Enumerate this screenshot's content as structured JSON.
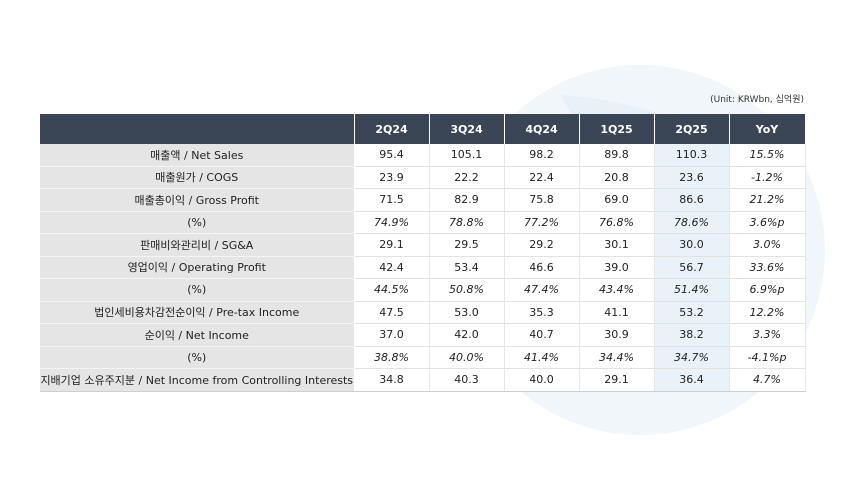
{
  "unit_note": "(Unit: KRWbn, 십억원)",
  "columns": [
    "",
    "2Q24",
    "3Q24",
    "4Q24",
    "1Q25",
    "2Q25",
    "YoY"
  ],
  "rows": [
    {
      "label": "매출액 / Net Sales",
      "values": [
        "95.4",
        "105.1",
        "98.2",
        "89.8",
        "110.3",
        "15.5%"
      ],
      "pct": false
    },
    {
      "label": "매출원가 / COGS",
      "values": [
        "23.9",
        "22.2",
        "22.4",
        "20.8",
        "23.6",
        "-1.2%"
      ],
      "pct": false
    },
    {
      "label": "매출총이익 / Gross Profit",
      "values": [
        "71.5",
        "82.9",
        "75.8",
        "69.0",
        "86.6",
        "21.2%"
      ],
      "pct": false
    },
    {
      "label": "(%)",
      "values": [
        "74.9%",
        "78.8%",
        "77.2%",
        "76.8%",
        "78.6%",
        "3.6%p"
      ],
      "pct": true
    },
    {
      "label": "판매비와관리비 / SG&A",
      "values": [
        "29.1",
        "29.5",
        "29.2",
        "30.1",
        "30.0",
        "3.0%"
      ],
      "pct": false
    },
    {
      "label": "영업이익 / Operating Profit",
      "values": [
        "42.4",
        "53.4",
        "46.6",
        "39.0",
        "56.7",
        "33.6%"
      ],
      "pct": false
    },
    {
      "label": "(%)",
      "values": [
        "44.5%",
        "50.8%",
        "47.4%",
        "43.4%",
        "51.4%",
        "6.9%p"
      ],
      "pct": true
    },
    {
      "label": "법인세비용차감전순이익 / Pre-tax Income",
      "values": [
        "47.5",
        "53.0",
        "35.3",
        "41.1",
        "53.2",
        "12.2%"
      ],
      "pct": false
    },
    {
      "label": "순이익 / Net Income",
      "values": [
        "37.0",
        "42.0",
        "40.7",
        "30.9",
        "38.2",
        "3.3%"
      ],
      "pct": false
    },
    {
      "label": "(%)",
      "values": [
        "38.8%",
        "40.0%",
        "41.4%",
        "34.4%",
        "34.7%",
        "-4.1%p"
      ],
      "pct": true
    },
    {
      "label": "지배기업 소유주지분 / Net Income from Controlling Interests",
      "values": [
        "34.8",
        "40.3",
        "40.0",
        "29.1",
        "36.4",
        "4.7%"
      ],
      "pct": false
    }
  ],
  "colors": {
    "header_bg": "#3a4556",
    "label_bg": "#e5e5e5",
    "highlight_col": "#e9f2f9",
    "watermark": "#eef4f9"
  }
}
